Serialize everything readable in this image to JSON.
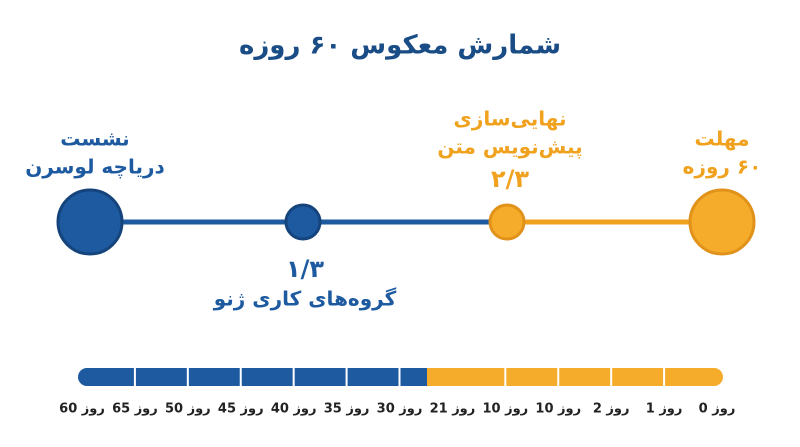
{
  "title": "شمارش معکوس ۶۰ روزه",
  "nodes": [
    {
      "lines": [
        "نشست",
        "دریاچه لوسرن"
      ]
    },
    {
      "fraction": "۱/۳",
      "lines": [
        "گروه‌های کاری ژنو"
      ]
    },
    {
      "lines": [
        "نهایی‌سازی",
        "پیش‌نویس متن"
      ],
      "fraction": "۲/۳"
    },
    {
      "lines": [
        "مهلت",
        "۶۰ روزه"
      ]
    }
  ],
  "timeline": {
    "labels": [
      "60 روز",
      "65 روز",
      "50 روز",
      "45 روز",
      "40 روز",
      "35 روز",
      "30 روز",
      "21 روز",
      "10 روز",
      "10 روز",
      "2 روز",
      "1 روز",
      "0 روز"
    ]
  }
}
